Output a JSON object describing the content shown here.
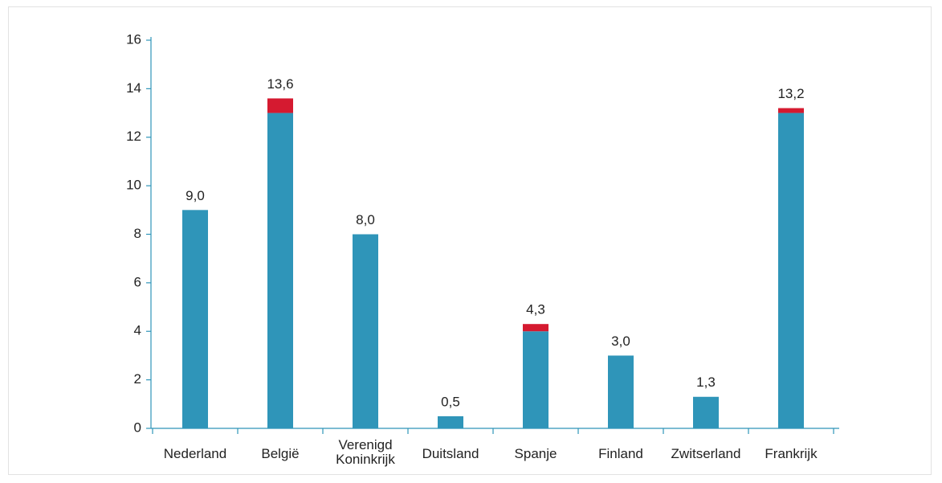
{
  "chart_data": {
    "type": "stacked_bar",
    "categories": [
      "Nederland",
      "België",
      "Verenigd Koninkrijk",
      "Duitsland",
      "Spanje",
      "Finland",
      "Zwitserland",
      "Frankrijk"
    ],
    "series": [
      {
        "color": "#2f95b9",
        "values": [
          9,
          13,
          8,
          0.5,
          4,
          3,
          1.3,
          13
        ]
      },
      {
        "color": "#d51a30",
        "values": [
          null,
          0.6,
          null,
          null,
          0.3,
          null,
          null,
          0.2
        ]
      }
    ],
    "totals": [
      9,
      13.6,
      8,
      0.5,
      4.3,
      3,
      1.3,
      13.2
    ],
    "total_labels": [
      "9,0",
      "13,6",
      "8,0",
      "0,5",
      "4,3",
      "3,0",
      "1,3",
      "13,2"
    ],
    "ylim": [
      0,
      16
    ],
    "yticks": [
      0,
      2,
      4,
      6,
      8,
      10,
      12,
      14,
      16
    ]
  }
}
